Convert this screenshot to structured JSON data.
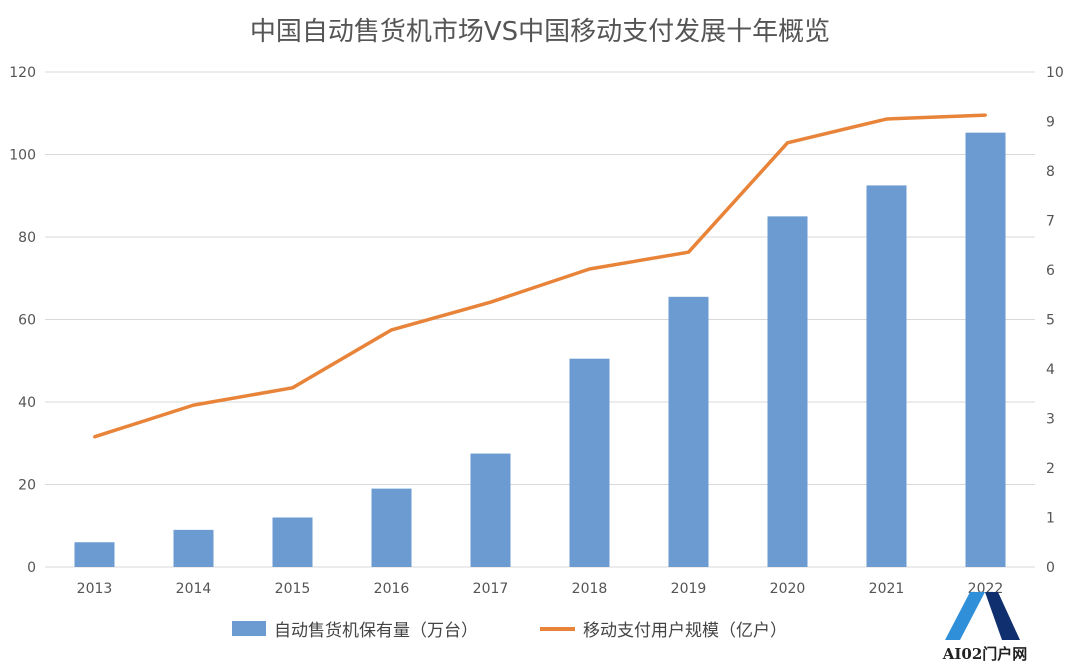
{
  "chart_data": {
    "type": "bar+line",
    "title": "中国自动售货机市场VS中国移动支付发展十年概览",
    "categories": [
      "2013",
      "2014",
      "2015",
      "2016",
      "2017",
      "2018",
      "2019",
      "2020",
      "2021",
      "2022"
    ],
    "series": [
      {
        "name": "自动售货机保有量（万台）",
        "type": "bar",
        "axis": "left",
        "color": "#6b9bd1",
        "values": [
          6,
          9,
          12,
          19,
          27.5,
          50.5,
          65.5,
          85,
          92.5,
          105.3
        ]
      },
      {
        "name": "移动支付用户规模（亿户）",
        "type": "line",
        "axis": "right",
        "color": "#e8843a",
        "values": [
          2.63,
          3.27,
          3.62,
          4.79,
          5.35,
          6.02,
          6.36,
          8.57,
          9.05,
          9.13
        ]
      }
    ],
    "left_axis": {
      "ylim": [
        0,
        120
      ],
      "ticks": [
        "0",
        "20",
        "40",
        "60",
        "80",
        "100",
        "120"
      ]
    },
    "right_axis": {
      "ylim": [
        0,
        10
      ],
      "ticks": [
        "0",
        "1",
        "2",
        "3",
        "4",
        "5",
        "6",
        "7",
        "8",
        "9",
        "10"
      ]
    },
    "grid": true,
    "legend": "bottom"
  },
  "watermark": {
    "text": "AI02门户网"
  }
}
